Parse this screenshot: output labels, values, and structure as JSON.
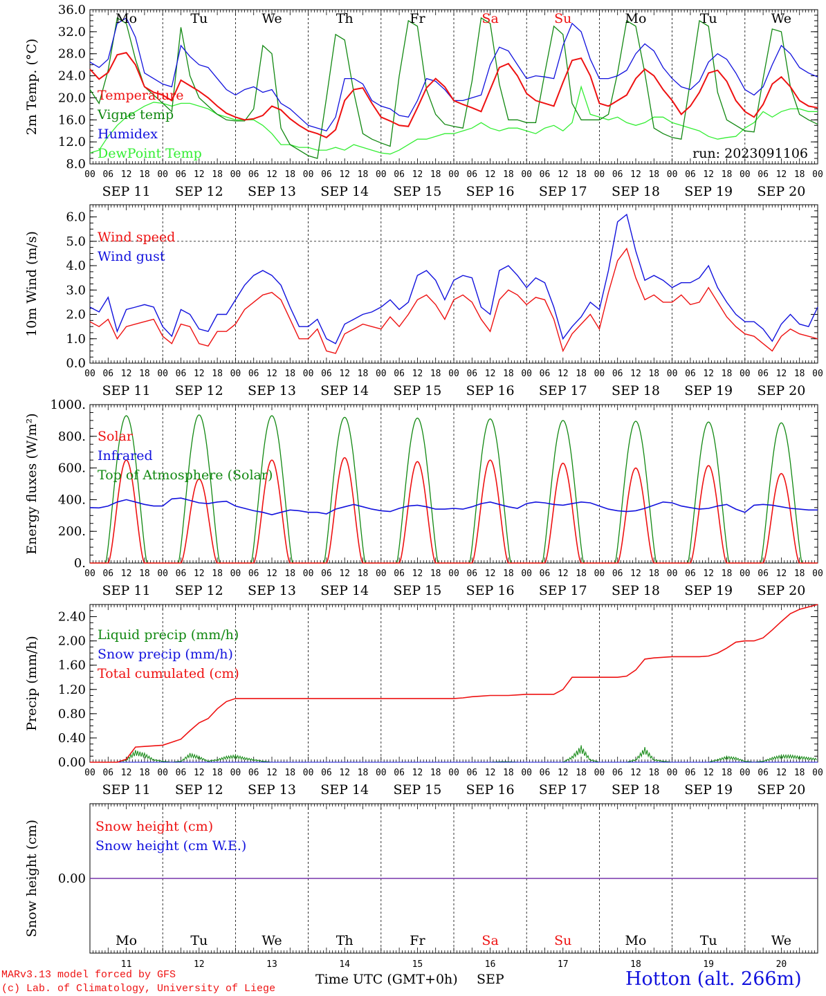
{
  "days": [
    "Mo",
    "Tu",
    "We",
    "Th",
    "Fr",
    "Sa",
    "Su",
    "Mo",
    "Tu",
    "We"
  ],
  "day_colors": [
    "#000000",
    "#000000",
    "#000000",
    "#000000",
    "#000000",
    "#ee1111",
    "#ee1111",
    "#000000",
    "#000000",
    "#000000"
  ],
  "dates": [
    "SEP 11",
    "SEP 12",
    "SEP 13",
    "SEP 14",
    "SEP 15",
    "SEP 16",
    "SEP 17",
    "SEP 18",
    "SEP 19",
    "SEP 20"
  ],
  "hour_ticks": [
    "00",
    "06",
    "12",
    "18"
  ],
  "final_hour": "00",
  "bottom_day_numbers": [
    "11",
    "12",
    "13",
    "14",
    "15",
    "16",
    "17",
    "18",
    "19",
    "20"
  ],
  "month": "SEP",
  "time_axis_label": "Time UTC (GMT+0h)",
  "footer": {
    "model_line": "MARv3.13 model forced by GFS",
    "credit_line": "(c) Lab. of Climatology, University of Liege",
    "station": "Hotton (alt. 266m)"
  },
  "colors": {
    "red": "#ee1111",
    "green": "#118811",
    "blue": "#1111dd",
    "light_green": "#33ee33",
    "purple": "#7733aa"
  },
  "chart_data": [
    {
      "id": "temperature",
      "type": "line",
      "ylabel": "2m Temp. (°C)",
      "ylim": [
        8.0,
        36.0
      ],
      "yticks": [
        "8.0",
        "12.0",
        "16.0",
        "20.0",
        "24.0",
        "28.0",
        "32.0",
        "36.0"
      ],
      "annotation": "run: 2023091106",
      "series": [
        {
          "name": "Temperature",
          "color": "#ee1111",
          "values": [
            25.2,
            23.4,
            24.6,
            27.8,
            28.2,
            26.0,
            22.0,
            21.0,
            20.5,
            19.5,
            23.2,
            22.2,
            21.2,
            20.0,
            18.5,
            17.2,
            16.5,
            16.0,
            16.2,
            16.8,
            18.5,
            17.8,
            16.2,
            15.0,
            14.0,
            13.5,
            12.8,
            14.2,
            19.5,
            21.5,
            21.8,
            19.0,
            16.5,
            15.8,
            15.0,
            14.8,
            18.2,
            21.8,
            23.5,
            22.0,
            19.5,
            18.8,
            18.2,
            17.5,
            21.5,
            25.5,
            26.2,
            24.0,
            20.8,
            19.5,
            19.0,
            18.5,
            22.8,
            26.8,
            27.2,
            24.0,
            19.0,
            18.5,
            19.5,
            20.5,
            23.5,
            25.2,
            24.0,
            21.5,
            19.5,
            17.0,
            18.5,
            21.0,
            24.5,
            25.0,
            23.0,
            19.5,
            17.5,
            16.5,
            18.8,
            22.5,
            23.8,
            22.0,
            19.5,
            18.5,
            18.2
          ]
        },
        {
          "name": "Vigne temp",
          "color": "#118811",
          "values": [
            21.5,
            19.0,
            25.0,
            34.5,
            33.5,
            27.0,
            22.0,
            20.5,
            19.0,
            17.5,
            32.8,
            24.0,
            20.0,
            18.5,
            17.0,
            16.0,
            15.8,
            15.8,
            18.0,
            29.5,
            28.0,
            14.5,
            11.5,
            10.5,
            9.5,
            9.0,
            20.0,
            31.5,
            30.5,
            21.0,
            13.5,
            12.5,
            11.8,
            11.2,
            24.0,
            34.0,
            33.0,
            21.5,
            17.0,
            15.2,
            14.8,
            14.5,
            23.0,
            34.5,
            33.5,
            22.5,
            16.0,
            16.0,
            15.5,
            15.5,
            24.5,
            33.0,
            31.5,
            19.0,
            16.0,
            16.0,
            16.0,
            17.0,
            24.5,
            34.0,
            33.0,
            24.5,
            14.5,
            13.5,
            12.8,
            12.5,
            23.0,
            34.0,
            33.0,
            21.0,
            16.0,
            15.0,
            14.0,
            13.8,
            23.5,
            32.5,
            32.0,
            22.0,
            17.0,
            16.0,
            15.2
          ]
        },
        {
          "name": "Humidex",
          "color": "#1111dd",
          "values": [
            26.5,
            25.5,
            27.0,
            33.5,
            34.5,
            31.0,
            24.5,
            23.5,
            22.5,
            22.0,
            29.5,
            27.5,
            26.0,
            25.5,
            23.5,
            21.5,
            20.5,
            21.5,
            22.0,
            21.0,
            21.5,
            19.0,
            18.0,
            16.5,
            15.0,
            14.5,
            14.0,
            16.5,
            23.5,
            23.5,
            22.5,
            19.5,
            18.5,
            18.0,
            16.8,
            16.5,
            19.5,
            23.5,
            23.0,
            21.5,
            19.5,
            19.5,
            20.0,
            20.5,
            26.0,
            29.2,
            28.5,
            26.0,
            23.5,
            24.0,
            23.8,
            23.5,
            29.5,
            33.5,
            32.0,
            27.0,
            23.5,
            23.5,
            24.0,
            25.0,
            28.0,
            29.8,
            28.5,
            25.5,
            23.5,
            22.0,
            21.5,
            23.0,
            26.5,
            28.0,
            27.0,
            24.5,
            21.5,
            20.5,
            22.0,
            26.0,
            29.5,
            28.0,
            25.5,
            24.5,
            23.8
          ]
        },
        {
          "name": "DewPoint Temp",
          "color": "#33ee33",
          "values": [
            10.0,
            10.5,
            13.0,
            15.0,
            16.5,
            17.5,
            18.5,
            19.2,
            19.0,
            18.5,
            19.0,
            19.0,
            18.5,
            18.0,
            17.0,
            16.5,
            16.0,
            16.0,
            16.0,
            15.0,
            13.5,
            11.5,
            11.5,
            11.0,
            11.0,
            10.5,
            10.5,
            11.0,
            10.5,
            11.5,
            11.0,
            10.5,
            10.0,
            9.8,
            10.5,
            11.5,
            12.5,
            12.5,
            13.0,
            13.5,
            13.5,
            14.0,
            14.5,
            15.5,
            14.5,
            14.0,
            14.5,
            14.5,
            14.0,
            13.5,
            14.5,
            15.0,
            14.0,
            15.5,
            22.0,
            17.0,
            16.5,
            16.0,
            16.5,
            15.5,
            15.0,
            15.5,
            16.5,
            16.5,
            15.5,
            15.0,
            14.5,
            14.0,
            13.0,
            12.5,
            12.8,
            13.0,
            14.5,
            15.5,
            17.5,
            16.5,
            17.5,
            18.0,
            18.0,
            17.5,
            17.5
          ]
        }
      ]
    },
    {
      "id": "wind",
      "type": "line",
      "ylabel": "10m Wind (m/s)",
      "ylim": [
        0.0,
        6.5
      ],
      "yticks": [
        "0.0",
        "1.0",
        "2.0",
        "3.0",
        "4.0",
        "5.0",
        "6.0"
      ],
      "dashed_reference": 5.0,
      "series": [
        {
          "name": "Wind speed",
          "color": "#ee1111",
          "values": [
            1.7,
            1.5,
            1.8,
            1.0,
            1.5,
            1.6,
            1.7,
            1.8,
            1.1,
            0.8,
            1.6,
            1.5,
            0.8,
            0.7,
            1.3,
            1.3,
            1.6,
            2.2,
            2.5,
            2.8,
            2.9,
            2.6,
            1.8,
            1.0,
            1.0,
            1.4,
            0.5,
            0.4,
            1.2,
            1.4,
            1.6,
            1.5,
            1.4,
            1.9,
            1.5,
            2.0,
            2.6,
            2.8,
            2.4,
            1.8,
            2.6,
            2.8,
            2.5,
            1.8,
            1.3,
            2.6,
            3.0,
            2.8,
            2.4,
            2.7,
            2.6,
            1.8,
            0.5,
            1.2,
            1.6,
            2.0,
            1.4,
            2.9,
            4.2,
            4.7,
            3.5,
            2.6,
            2.8,
            2.5,
            2.5,
            2.8,
            2.4,
            2.5,
            3.1,
            2.5,
            1.9,
            1.5,
            1.2,
            1.1,
            0.8,
            0.5,
            1.1,
            1.4,
            1.2,
            1.1,
            1.0
          ]
        },
        {
          "name": "Wind gust",
          "color": "#1111dd",
          "values": [
            2.3,
            2.1,
            2.7,
            1.3,
            2.2,
            2.3,
            2.4,
            2.3,
            1.5,
            1.1,
            2.2,
            2.0,
            1.4,
            1.3,
            2.0,
            2.0,
            2.6,
            3.2,
            3.6,
            3.8,
            3.6,
            3.2,
            2.3,
            1.5,
            1.5,
            1.8,
            1.0,
            0.8,
            1.6,
            1.8,
            2.0,
            2.1,
            2.3,
            2.6,
            2.2,
            2.5,
            3.6,
            3.8,
            3.4,
            2.6,
            3.4,
            3.6,
            3.5,
            2.3,
            2.0,
            3.8,
            4.0,
            3.6,
            3.1,
            3.5,
            3.3,
            2.3,
            1.0,
            1.5,
            1.9,
            2.5,
            2.2,
            3.8,
            5.8,
            6.1,
            4.6,
            3.4,
            3.6,
            3.4,
            3.1,
            3.3,
            3.3,
            3.5,
            4.0,
            3.1,
            2.5,
            2.0,
            1.7,
            1.7,
            1.4,
            0.9,
            1.6,
            2.0,
            1.6,
            1.5,
            2.3
          ]
        }
      ]
    },
    {
      "id": "energy",
      "type": "line",
      "ylabel": "Energy fluxes (W/m²)",
      "ylim": [
        0,
        1000
      ],
      "yticks": [
        "0.",
        "200.",
        "400.",
        "600.",
        "800.",
        "1000."
      ],
      "solar_peaks": [
        650,
        530,
        650,
        665,
        640,
        650,
        630,
        600,
        615,
        565
      ],
      "toa_peaks": [
        930,
        935,
        930,
        920,
        915,
        910,
        900,
        895,
        890,
        885
      ],
      "series": [
        {
          "name": "Solar",
          "color": "#ee1111"
        },
        {
          "name": "Infrared",
          "color": "#1111dd",
          "values": [
            350,
            348,
            360,
            385,
            400,
            385,
            370,
            360,
            360,
            405,
            410,
            395,
            380,
            375,
            385,
            390,
            360,
            345,
            330,
            320,
            305,
            320,
            335,
            330,
            320,
            320,
            310,
            340,
            355,
            370,
            355,
            340,
            330,
            325,
            345,
            360,
            365,
            355,
            340,
            340,
            345,
            340,
            355,
            375,
            385,
            370,
            355,
            345,
            375,
            385,
            380,
            370,
            365,
            375,
            385,
            380,
            360,
            340,
            330,
            325,
            330,
            345,
            365,
            385,
            380,
            360,
            350,
            340,
            345,
            360,
            370,
            340,
            320,
            365,
            370,
            365,
            355,
            345,
            340,
            335,
            335
          ]
        },
        {
          "name": "Top of Atmosphere (Solar)",
          "color": "#118811"
        }
      ]
    },
    {
      "id": "precip",
      "type": "line",
      "ylabel": "Precip (mm/h)",
      "ylim": [
        0.0,
        2.6
      ],
      "yticks": [
        "0.00",
        "0.40",
        "0.80",
        "1.20",
        "1.60",
        "2.00",
        "2.40"
      ],
      "series": [
        {
          "name": "Liquid precip (mm/h)",
          "color": "#118811",
          "values": [
            0,
            0,
            0,
            0,
            0.05,
            0.2,
            0.15,
            0.05,
            0.02,
            0,
            0.02,
            0.15,
            0.1,
            0.02,
            0.05,
            0.1,
            0.12,
            0.08,
            0.05,
            0.02,
            0,
            0,
            0,
            0,
            0,
            0,
            0,
            0,
            0,
            0,
            0,
            0,
            0,
            0,
            0,
            0,
            0,
            0,
            0,
            0,
            0,
            0,
            0,
            0,
            0,
            0.01,
            0.01,
            0,
            0,
            0,
            0,
            0,
            0,
            0.1,
            0.28,
            0.05,
            0,
            0,
            0,
            0,
            0.05,
            0.25,
            0.05,
            0.02,
            0,
            0,
            0,
            0,
            0,
            0.05,
            0.1,
            0.08,
            0.02,
            0,
            0.02,
            0.08,
            0.12,
            0.12,
            0.1,
            0.08,
            0.06
          ]
        },
        {
          "name": "Snow precip (mm/h)",
          "color": "#1111dd",
          "values": [
            0,
            0,
            0,
            0,
            0,
            0,
            0,
            0,
            0,
            0,
            0,
            0,
            0,
            0,
            0,
            0,
            0,
            0,
            0,
            0,
            0,
            0,
            0,
            0,
            0,
            0,
            0,
            0,
            0,
            0,
            0,
            0,
            0,
            0,
            0,
            0,
            0,
            0,
            0,
            0,
            0,
            0,
            0,
            0,
            0,
            0,
            0,
            0,
            0,
            0,
            0,
            0,
            0,
            0,
            0,
            0,
            0,
            0,
            0,
            0,
            0,
            0,
            0,
            0,
            0,
            0,
            0,
            0,
            0,
            0,
            0,
            0,
            0,
            0,
            0,
            0,
            0,
            0,
            0,
            0,
            0
          ]
        },
        {
          "name": "Total cumulated (cm)",
          "color": "#ee1111",
          "values": [
            0,
            0,
            0,
            0,
            0.05,
            0.25,
            0.26,
            0.27,
            0.28,
            0.33,
            0.38,
            0.52,
            0.65,
            0.72,
            0.88,
            1.0,
            1.05,
            1.05,
            1.05,
            1.05,
            1.05,
            1.05,
            1.05,
            1.05,
            1.05,
            1.05,
            1.05,
            1.05,
            1.05,
            1.05,
            1.05,
            1.05,
            1.05,
            1.05,
            1.05,
            1.05,
            1.05,
            1.05,
            1.05,
            1.05,
            1.05,
            1.06,
            1.08,
            1.09,
            1.1,
            1.1,
            1.1,
            1.11,
            1.12,
            1.12,
            1.12,
            1.12,
            1.2,
            1.4,
            1.4,
            1.4,
            1.4,
            1.4,
            1.4,
            1.42,
            1.52,
            1.7,
            1.72,
            1.73,
            1.74,
            1.74,
            1.74,
            1.74,
            1.75,
            1.8,
            1.88,
            1.98,
            2.0,
            2.0,
            2.05,
            2.18,
            2.32,
            2.45,
            2.52,
            2.56,
            2.6
          ]
        }
      ]
    },
    {
      "id": "snow",
      "type": "line",
      "ylabel": "Snow height (cm)",
      "ylim": [
        -1,
        1
      ],
      "yticks": [
        "0.00"
      ],
      "series": [
        {
          "name": "Snow height (cm)",
          "color": "#ee1111",
          "values": [
            0,
            0
          ]
        },
        {
          "name": "Snow height (cm W.E.)",
          "color": "#1111dd",
          "values": [
            0,
            0
          ]
        }
      ]
    }
  ]
}
